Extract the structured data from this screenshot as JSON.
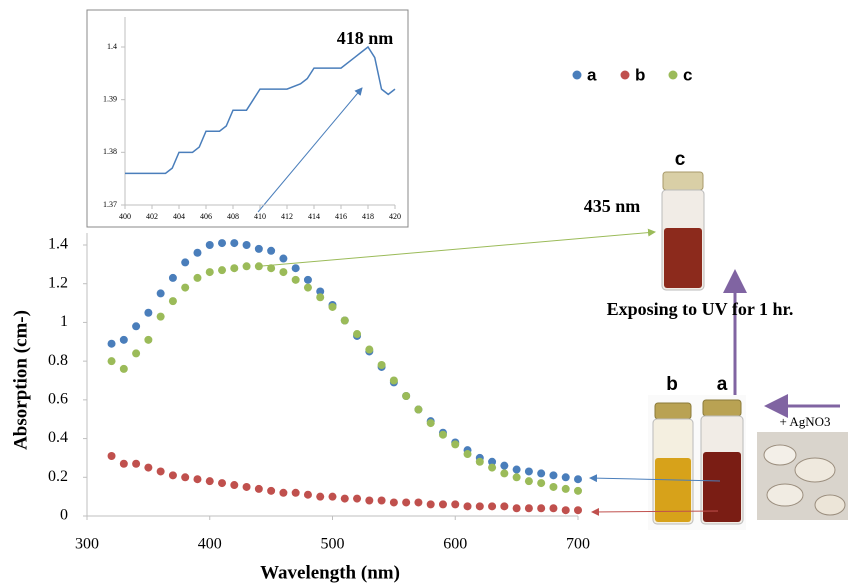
{
  "chart_data": [
    {
      "type": "scatter",
      "x_label": "Wavelength (nm)",
      "y_label": "Absorption (cm-)",
      "x": [
        320,
        330,
        340,
        350,
        360,
        370,
        380,
        390,
        400,
        410,
        420,
        430,
        440,
        450,
        460,
        470,
        480,
        490,
        500,
        510,
        520,
        530,
        540,
        550,
        560,
        570,
        580,
        590,
        600,
        610,
        620,
        630,
        640,
        650,
        660,
        670,
        680,
        690,
        700
      ],
      "series": [
        {
          "name": "a",
          "color": "#4a7ebb",
          "values": [
            0.89,
            0.91,
            0.98,
            1.05,
            1.15,
            1.23,
            1.31,
            1.36,
            1.4,
            1.41,
            1.41,
            1.4,
            1.38,
            1.37,
            1.33,
            1.28,
            1.22,
            1.16,
            1.09,
            1.01,
            0.93,
            0.85,
            0.77,
            0.69,
            0.62,
            0.55,
            0.49,
            0.43,
            0.38,
            0.34,
            0.3,
            0.28,
            0.26,
            0.24,
            0.23,
            0.22,
            0.21,
            0.2,
            0.19
          ]
        },
        {
          "name": "b",
          "color": "#c0504d",
          "values": [
            0.31,
            0.27,
            0.27,
            0.25,
            0.23,
            0.21,
            0.2,
            0.19,
            0.18,
            0.17,
            0.16,
            0.15,
            0.14,
            0.13,
            0.12,
            0.12,
            0.11,
            0.1,
            0.1,
            0.09,
            0.09,
            0.08,
            0.08,
            0.07,
            0.07,
            0.07,
            0.06,
            0.06,
            0.06,
            0.05,
            0.05,
            0.05,
            0.05,
            0.04,
            0.04,
            0.04,
            0.04,
            0.03,
            0.03
          ]
        },
        {
          "name": "c",
          "color": "#9bbb59",
          "values": [
            0.8,
            0.76,
            0.84,
            0.91,
            1.03,
            1.11,
            1.18,
            1.23,
            1.26,
            1.27,
            1.28,
            1.29,
            1.29,
            1.28,
            1.26,
            1.22,
            1.18,
            1.13,
            1.08,
            1.01,
            0.94,
            0.86,
            0.78,
            0.7,
            0.62,
            0.55,
            0.48,
            0.42,
            0.37,
            0.32,
            0.28,
            0.25,
            0.22,
            0.2,
            0.18,
            0.17,
            0.15,
            0.14,
            0.13
          ]
        }
      ],
      "xlim": [
        300,
        700
      ],
      "xticks": [
        300,
        400,
        500,
        600,
        700
      ],
      "ylim": [
        0,
        1.4
      ],
      "yticks": [
        0,
        0.2,
        0.4,
        0.6,
        0.8,
        1,
        1.2,
        1.4
      ],
      "legend": "top-right",
      "annotations": [
        "435 nm",
        "Exposing to UV for 1 hr.",
        "+ AgNO3"
      ],
      "vial_labels": [
        "c",
        "b",
        "a"
      ]
    },
    {
      "type": "line",
      "x": [
        400,
        401,
        402,
        403,
        403.5,
        404,
        405,
        405.5,
        406,
        407,
        407.5,
        408,
        409,
        409.5,
        410,
        411,
        412,
        413,
        413.5,
        414,
        415,
        416,
        417,
        417.5,
        418,
        418.5,
        419,
        419.5,
        420
      ],
      "series": [
        {
          "color": "#4a7ebb",
          "values": [
            1.376,
            1.376,
            1.376,
            1.376,
            1.377,
            1.38,
            1.38,
            1.381,
            1.384,
            1.384,
            1.385,
            1.388,
            1.388,
            1.39,
            1.392,
            1.392,
            1.392,
            1.393,
            1.394,
            1.396,
            1.396,
            1.396,
            1.398,
            1.399,
            1.4,
            1.398,
            1.392,
            1.391,
            1.392
          ]
        }
      ],
      "xlim": [
        400,
        420
      ],
      "xticks": [
        400,
        402,
        404,
        406,
        408,
        410,
        412,
        414,
        416,
        418,
        420
      ],
      "ylim": [
        1.37,
        1.4
      ],
      "yticks": [
        1.37,
        1.38,
        1.39,
        1.4
      ],
      "annotations": [
        "418 nm"
      ]
    }
  ]
}
